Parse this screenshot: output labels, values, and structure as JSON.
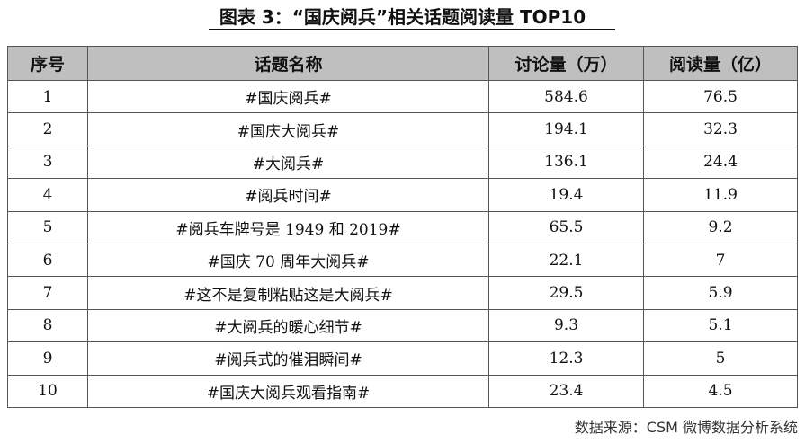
{
  "title": "图表 3：“国庆阅兵”相关话题阅读量 TOP10",
  "table": {
    "headers": [
      "序号",
      "话题名称",
      "讨论量（万）",
      "阅读量（亿）"
    ],
    "rows": [
      [
        "1",
        "#国庆阅兵#",
        "584.6",
        "76.5"
      ],
      [
        "2",
        "#国庆大阅兵#",
        "194.1",
        "32.3"
      ],
      [
        "3",
        "#大阅兵#",
        "136.1",
        "24.4"
      ],
      [
        "4",
        "#阅兵时间#",
        "19.4",
        "11.9"
      ],
      [
        "5",
        "#阅兵车牌号是 1949 和 2019#",
        "65.5",
        "9.2"
      ],
      [
        "6",
        "#国庆 70 周年大阅兵#",
        "22.1",
        "7"
      ],
      [
        "7",
        "#这不是复制粘贴这是大阅兵#",
        "29.5",
        "5.9"
      ],
      [
        "8",
        "#大阅兵的暖心细节#",
        "9.3",
        "5.1"
      ],
      [
        "9",
        "#阅兵式的催泪瞬间#",
        "12.3",
        "5"
      ],
      [
        "10",
        "#国庆大阅兵观看指南#",
        "23.4",
        "4.5"
      ]
    ]
  },
  "source": "数据来源：CSM 微博数据分析系统",
  "colors": {
    "header_bg": "#bfbfbf",
    "border": "#555555",
    "text": "#111111"
  }
}
